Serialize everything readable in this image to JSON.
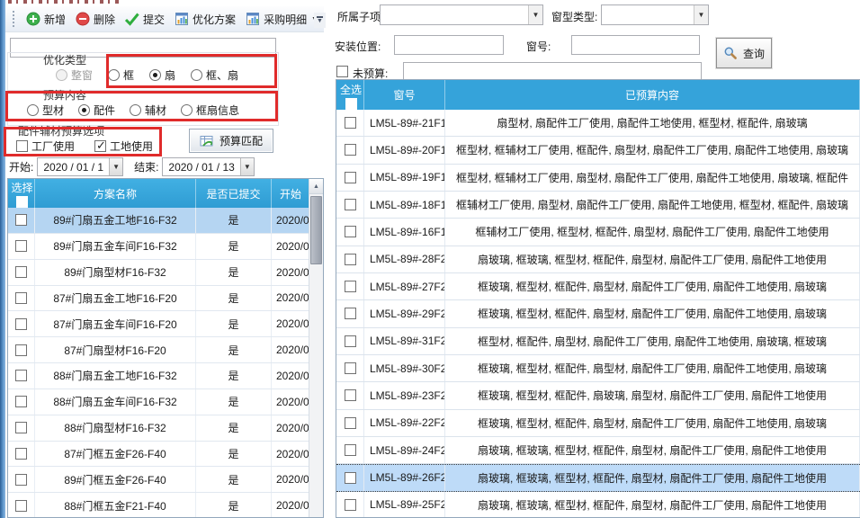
{
  "colors": {
    "header_blue": "#35a3da",
    "selected_row_blue": "#b5d5f2",
    "annotation_red": "#e02b2b"
  },
  "toolbar": {
    "buttons": [
      {
        "name": "add",
        "label": "新增",
        "icon": "add-icon"
      },
      {
        "name": "delete",
        "label": "删除",
        "icon": "delete-icon"
      },
      {
        "name": "submit",
        "label": "提交",
        "icon": "submit-check-icon"
      },
      {
        "name": "optimize-plan",
        "label": "优化方案",
        "icon": "report-icon"
      },
      {
        "name": "purchase-detail",
        "label": "采购明细",
        "icon": "report-icon",
        "dropdown": true
      }
    ]
  },
  "left_panel": {
    "filter_input_value": "",
    "groups": {
      "optimize_type": {
        "label": "优化类型",
        "options": [
          {
            "key": "whole-window",
            "label": "整窗",
            "selected": false,
            "disabled": true
          },
          {
            "key": "frame",
            "label": "框",
            "selected": false
          },
          {
            "key": "sash",
            "label": "扇",
            "selected": true
          },
          {
            "key": "frame-sash",
            "label": "框、扇",
            "selected": false
          }
        ]
      },
      "budget_content": {
        "label": "预算内容",
        "options": [
          {
            "key": "profile",
            "label": "型材",
            "selected": false
          },
          {
            "key": "accessory",
            "label": "配件",
            "selected": true
          },
          {
            "key": "auxiliary",
            "label": "辅材",
            "selected": false
          },
          {
            "key": "frame-sash-info",
            "label": "框扇信息",
            "selected": false
          }
        ]
      },
      "usage_options": {
        "label": "配件辅材预算选项",
        "checkboxes": [
          {
            "key": "factory-use",
            "label": "工厂使用",
            "checked": false
          },
          {
            "key": "site-use",
            "label": "工地使用",
            "checked": true
          }
        ]
      }
    },
    "match_button_label": "预算匹配",
    "date_range": {
      "start_label": "开始:",
      "start_value": "2020 / 01 / 1",
      "end_label": "结束:",
      "end_value": "2020 / 01 / 13"
    },
    "plan_table": {
      "headers": {
        "select": "选择",
        "name": "方案名称",
        "submitted": "是否已提交",
        "start": "开始"
      },
      "rows": [
        {
          "name": "89#门扇五金工地F16-F32",
          "submitted": "是",
          "start": "2020/0",
          "selected": true
        },
        {
          "name": "89#门扇五金车间F16-F32",
          "submitted": "是",
          "start": "2020/0",
          "selected": false
        },
        {
          "name": "89#门扇型材F16-F32",
          "submitted": "是",
          "start": "2020/0",
          "selected": false
        },
        {
          "name": "87#门扇五金工地F16-F20",
          "submitted": "是",
          "start": "2020/0",
          "selected": false
        },
        {
          "name": "87#门扇五金车间F16-F20",
          "submitted": "是",
          "start": "2020/0",
          "selected": false
        },
        {
          "name": "87#门扇型材F16-F20",
          "submitted": "是",
          "start": "2020/0",
          "selected": false
        },
        {
          "name": "88#门扇五金工地F16-F32",
          "submitted": "是",
          "start": "2020/0",
          "selected": false
        },
        {
          "name": "88#门扇五金车间F16-F32",
          "submitted": "是",
          "start": "2020/0",
          "selected": false
        },
        {
          "name": "88#门扇型材F16-F32",
          "submitted": "是",
          "start": "2020/0",
          "selected": false
        },
        {
          "name": "87#门框五金F26-F40",
          "submitted": "是",
          "start": "2020/0",
          "selected": false
        },
        {
          "name": "89#门框五金F26-F40",
          "submitted": "是",
          "start": "2020/0",
          "selected": false
        },
        {
          "name": "88#门框五金F21-F40",
          "submitted": "是",
          "start": "2020/0",
          "selected": false
        }
      ]
    }
  },
  "right_panel": {
    "filters": {
      "sub_item": {
        "label": "所属子项:",
        "value": ""
      },
      "window_type": {
        "label": "窗型类型:",
        "value": ""
      },
      "install_position": {
        "label": "安装位置:",
        "value": ""
      },
      "window_no": {
        "label": "窗号:",
        "value": ""
      },
      "not_budgeted": {
        "label": "未预算:",
        "checked": false,
        "value": ""
      },
      "query_button_label": "查询"
    },
    "budget_table": {
      "headers": {
        "select_all": "全选",
        "window_no": "窗号",
        "budgeted_content": "已预算内容"
      },
      "rows": [
        {
          "window_no": "LM5L-89#-21F19",
          "content": "扇型材, 扇配件工厂使用, 扇配件工地使用, 框型材, 框配件, 扇玻璃",
          "selected": false
        },
        {
          "window_no": "LM5L-89#-20F18",
          "content": "框型材, 框辅材工厂使用, 框配件, 扇型材, 扇配件工厂使用, 扇配件工地使用, 扇玻璃",
          "selected": false
        },
        {
          "window_no": "LM5L-89#-19F17",
          "content": "框型材, 框辅材工厂使用, 扇型材, 扇配件工厂使用, 扇配件工地使用, 扇玻璃, 框配件",
          "selected": false
        },
        {
          "window_no": "LM5L-89#-18F16",
          "content": "框辅材工厂使用, 扇型材, 扇配件工厂使用, 扇配件工地使用, 框型材, 框配件, 扇玻璃",
          "selected": false
        },
        {
          "window_no": "LM5L-89#-16F15",
          "content": "框辅材工厂使用, 框型材, 框配件, 扇型材, 扇配件工厂使用, 扇配件工地使用",
          "selected": false
        },
        {
          "window_no": "LM5L-89#-28F26",
          "content": "扇玻璃, 框玻璃, 框型材, 框配件, 扇型材, 扇配件工厂使用, 扇配件工地使用",
          "selected": false
        },
        {
          "window_no": "LM5L-89#-27F25",
          "content": "框玻璃, 框型材, 框配件, 扇型材, 扇配件工厂使用, 扇配件工地使用, 扇玻璃",
          "selected": false
        },
        {
          "window_no": "LM5L-89#-29F27",
          "content": "框玻璃, 框型材, 框配件, 扇型材, 扇配件工厂使用, 扇配件工地使用, 扇玻璃",
          "selected": false
        },
        {
          "window_no": "LM5L-89#-31F29",
          "content": "框型材, 框配件, 扇型材, 扇配件工厂使用, 扇配件工地使用, 扇玻璃, 框玻璃",
          "selected": false
        },
        {
          "window_no": "LM5L-89#-30F28",
          "content": "框玻璃, 框型材, 框配件, 扇型材, 扇配件工厂使用, 扇配件工地使用, 扇玻璃",
          "selected": false
        },
        {
          "window_no": "LM5L-89#-23F21",
          "content": "框玻璃, 框型材, 框配件, 扇玻璃, 扇型材, 扇配件工厂使用, 扇配件工地使用",
          "selected": false
        },
        {
          "window_no": "LM5L-89#-22F20",
          "content": "框玻璃, 框型材, 框配件, 扇型材, 扇配件工厂使用, 扇配件工地使用, 扇玻璃",
          "selected": false
        },
        {
          "window_no": "LM5L-89#-24F22",
          "content": "扇玻璃, 框玻璃, 框型材, 框配件, 扇型材, 扇配件工厂使用, 扇配件工地使用",
          "selected": false
        },
        {
          "window_no": "LM5L-89#-26F24",
          "content": "扇玻璃, 框玻璃, 框型材, 框配件, 扇型材, 扇配件工厂使用, 扇配件工地使用",
          "selected": true
        },
        {
          "window_no": "LM5L-89#-25F23",
          "content": "扇玻璃, 框玻璃, 框型材, 框配件, 扇型材, 扇配件工厂使用, 扇配件工地使用",
          "selected": false
        }
      ]
    }
  }
}
